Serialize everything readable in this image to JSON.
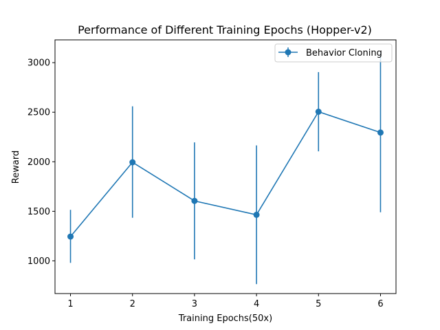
{
  "chart_data": {
    "type": "line",
    "title": "Performance of Different Training Epochs (Hopper-v2)",
    "xlabel": "Training Epochs(50x)",
    "ylabel": "Reward",
    "x": [
      1,
      2,
      3,
      4,
      5,
      6
    ],
    "xlim": [
      0.75,
      6.25
    ],
    "ylim": [
      670,
      3230
    ],
    "x_ticks": [
      "1",
      "2",
      "3",
      "4",
      "5",
      "6"
    ],
    "y_ticks": [
      "1000",
      "1500",
      "2000",
      "2500",
      "3000"
    ],
    "grid": false,
    "legend_position": "upper right",
    "series": [
      {
        "name": "Behavior Cloning",
        "color": "#1f77b4",
        "marker": "circle",
        "values": [
          1245,
          1995,
          1605,
          1465,
          2505,
          2295
        ],
        "error_low": [
          980,
          1435,
          1015,
          765,
          2105,
          1490
        ],
        "error_high": [
          1515,
          2560,
          2195,
          2165,
          2905,
          3100
        ]
      }
    ]
  }
}
